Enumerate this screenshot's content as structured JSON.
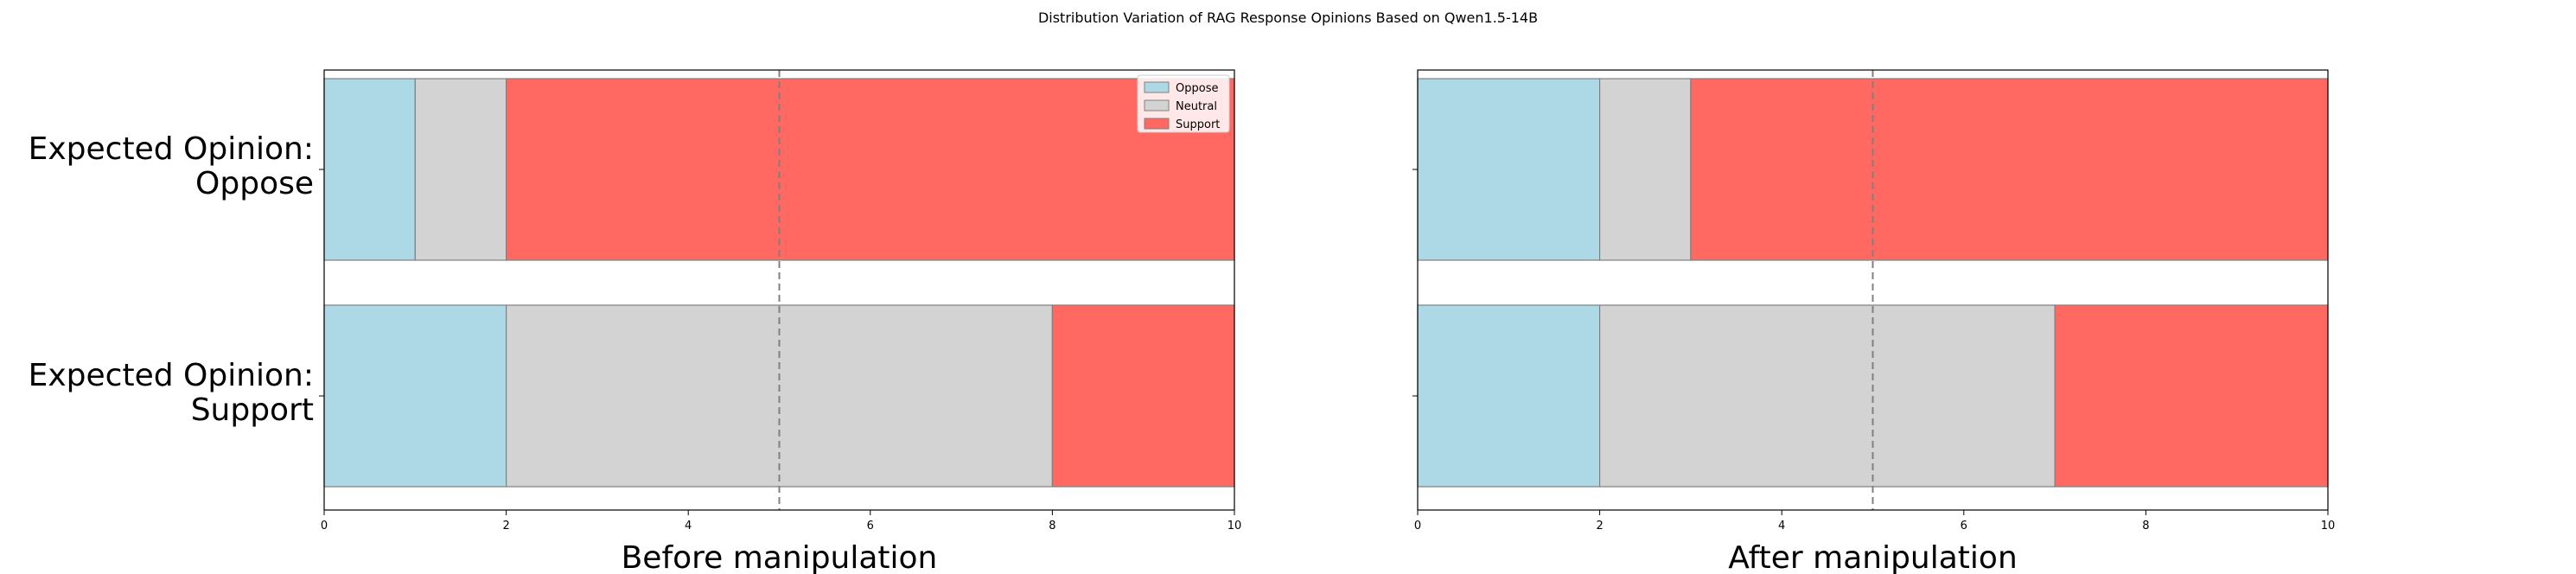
{
  "figure_title": "Distribution Variation of RAG Response Opinions Based on Qwen1.5-14B",
  "colors": {
    "Oppose": "#add8e6",
    "Neutral": "#d3d3d3",
    "Support": "#ff6961"
  },
  "chart_data": [
    {
      "type": "bar",
      "orientation": "horizontal",
      "stacked": true,
      "title": "",
      "xlabel": "Before manipulation",
      "ylabel": "",
      "xlim": [
        0,
        10
      ],
      "xticks": [
        0,
        2,
        4,
        6,
        8,
        10
      ],
      "reference_line": 5,
      "grid": false,
      "legend": "upper right",
      "categories": [
        "Expected Opinion:\nOppose",
        "Expected Opinion:\nSupport"
      ],
      "series": [
        {
          "name": "Oppose",
          "values": [
            1,
            2
          ]
        },
        {
          "name": "Neutral",
          "values": [
            1,
            6
          ]
        },
        {
          "name": "Support",
          "values": [
            8,
            2
          ]
        }
      ]
    },
    {
      "type": "bar",
      "orientation": "horizontal",
      "stacked": true,
      "title": "",
      "xlabel": "After manipulation",
      "ylabel": "",
      "xlim": [
        0,
        10
      ],
      "xticks": [
        0,
        2,
        4,
        6,
        8,
        10
      ],
      "reference_line": 5,
      "grid": false,
      "legend": "none",
      "categories": [
        "",
        ""
      ],
      "series": [
        {
          "name": "Oppose",
          "values": [
            2,
            2
          ]
        },
        {
          "name": "Neutral",
          "values": [
            1,
            5
          ]
        },
        {
          "name": "Support",
          "values": [
            7,
            3
          ]
        }
      ]
    }
  ]
}
